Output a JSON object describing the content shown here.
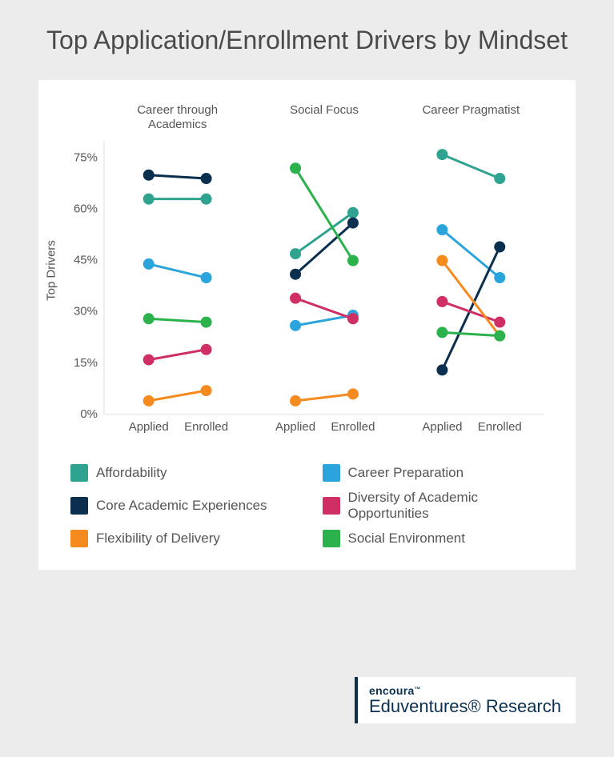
{
  "title": "Top Application/Enrollment Drivers by Mindset",
  "ylabel": "Top Drivers",
  "yaxis": {
    "min": 0,
    "max": 80,
    "ticks": [
      0,
      15,
      30,
      45,
      60,
      75
    ],
    "tick_suffix": "%"
  },
  "xlabels": [
    "Applied",
    "Enrolled"
  ],
  "groups": [
    {
      "title": "Career through Academics",
      "title_lines": [
        "Career through",
        "Academics"
      ]
    },
    {
      "title": "Social Focus",
      "title_lines": [
        "Social Focus"
      ]
    },
    {
      "title": "Career Pragmatist",
      "title_lines": [
        "Career Pragmatist"
      ]
    }
  ],
  "series": [
    {
      "key": "affordability",
      "label": "Affordability",
      "color": "#2fa38f",
      "data": [
        [
          63,
          63
        ],
        [
          47,
          59
        ],
        [
          76,
          69
        ]
      ]
    },
    {
      "key": "career_prep",
      "label": "Career Preparation",
      "color": "#2ba4dc",
      "data": [
        [
          44,
          40
        ],
        [
          26,
          29
        ],
        [
          54,
          40
        ]
      ]
    },
    {
      "key": "core_acad",
      "label": "Core Academic Experiences",
      "color": "#0a2f4f",
      "data": [
        [
          70,
          69
        ],
        [
          41,
          56
        ],
        [
          13,
          49
        ]
      ]
    },
    {
      "key": "diversity_acad",
      "label": "Diversity of Academic Opportunities",
      "color": "#d02f66",
      "data": [
        [
          16,
          19
        ],
        [
          34,
          28
        ],
        [
          33,
          27
        ]
      ]
    },
    {
      "key": "flex_delivery",
      "label": "Flexibility of Delivery",
      "color": "#f58a1f",
      "data": [
        [
          4,
          7
        ],
        [
          4,
          6
        ],
        [
          45,
          23
        ]
      ]
    },
    {
      "key": "social_env",
      "label": "Social Environment",
      "color": "#2bb24c",
      "data": [
        [
          28,
          27
        ],
        [
          72,
          45
        ],
        [
          24,
          23
        ]
      ]
    }
  ],
  "chart_style": {
    "plot_bg": "#ffffff",
    "axis_color": "#e0e0e0",
    "marker_radius": 7,
    "line_width": 3,
    "group_gap": 0.3
  },
  "legend_order": [
    "affordability",
    "career_prep",
    "core_acad",
    "diversity_acad",
    "flex_delivery",
    "social_env"
  ],
  "brand": {
    "line1": "encoura",
    "line2": "Eduventures® Research"
  }
}
